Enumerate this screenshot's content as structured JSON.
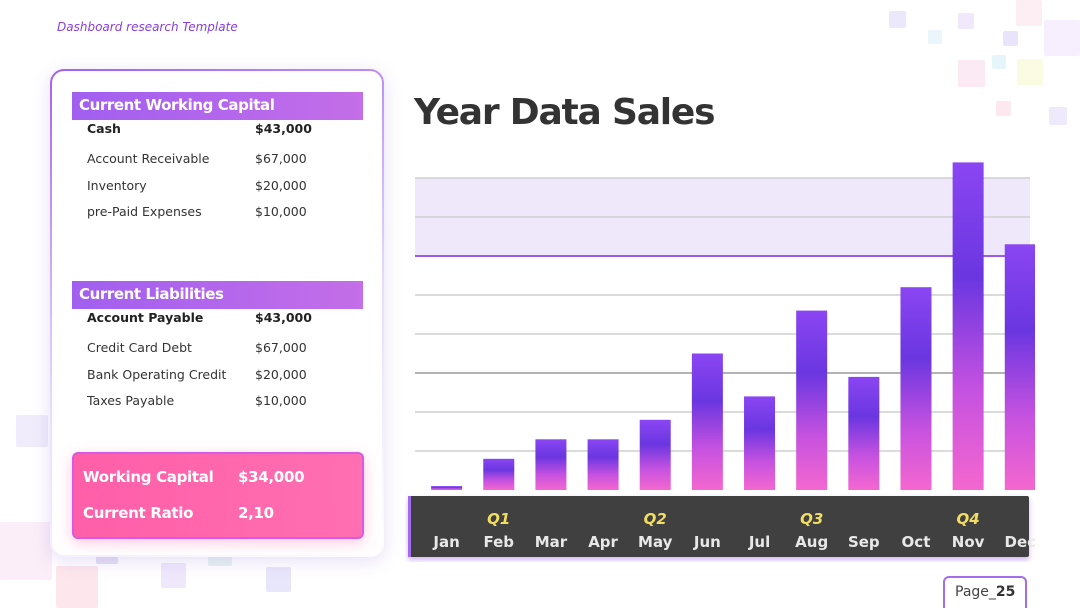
{
  "header": {
    "template_label": "Dashboard research Template"
  },
  "working_capital": {
    "title": "Current Working Capital",
    "items": [
      {
        "label": "Cash",
        "value": "$43,000",
        "bold": true
      },
      {
        "label": "Account Receivable",
        "value": "$67,000",
        "bold": false
      },
      {
        "label": "Inventory",
        "value": "$20,000",
        "bold": false
      },
      {
        "label": "pre-Paid Expenses",
        "value": "$10,000",
        "bold": false
      }
    ]
  },
  "liabilities": {
    "title": "Current Liabilities",
    "items": [
      {
        "label": "Account Payable",
        "value": "$43,000",
        "bold": true
      },
      {
        "label": "Credit Card Debt",
        "value": "$67,000",
        "bold": false
      },
      {
        "label": "Bank Operating Credit",
        "value": "$20,000",
        "bold": false
      },
      {
        "label": "Taxes Payable",
        "value": "$10,000",
        "bold": false
      }
    ]
  },
  "summary": {
    "working_capital_label": "Working Capital",
    "working_capital_value": "$34,000",
    "current_ratio_label": "Current Ratio",
    "current_ratio_value": "2,10"
  },
  "chart_data": {
    "type": "bar",
    "title": "Year Data Sales",
    "categories": [
      "Jan",
      "Feb",
      "Mar",
      "Apr",
      "May",
      "Jun",
      "Jul",
      "Aug",
      "Sep",
      "Oct",
      "Nov",
      "Dec"
    ],
    "values": [
      1,
      8,
      13,
      13,
      18,
      35,
      24,
      46,
      29,
      52,
      84,
      63
    ],
    "quarters": [
      {
        "label": "Q1",
        "category": "Feb"
      },
      {
        "label": "Q2",
        "category": "May"
      },
      {
        "label": "Q3",
        "category": "Aug"
      },
      {
        "label": "Q4",
        "category": "Nov"
      }
    ],
    "ylim": [
      0,
      80
    ],
    "highlight_band": [
      60,
      80
    ],
    "grid": true,
    "colors": {
      "bar_top": "#7a3cf0",
      "bar_mid": "#9b44e0",
      "bar_bottom": "#f05fcf",
      "axis_bg": "#404040",
      "quarter": "#f1de63",
      "band": "#efe8fb",
      "band_line": "#9a5ce8"
    }
  },
  "footer": {
    "page_prefix": "Page_",
    "page_number": "25"
  }
}
